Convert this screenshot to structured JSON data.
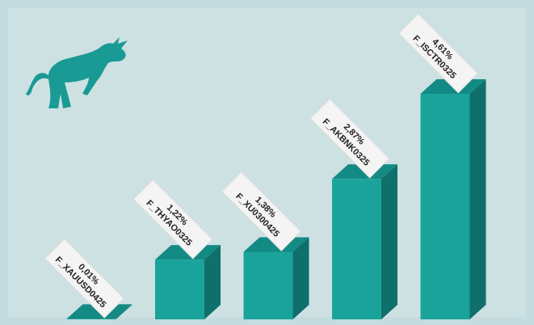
{
  "chart_data": {
    "type": "bar3d",
    "categories": [
      "F_XAUUSD0425",
      "F_THYAO0325",
      "F_XU0300425",
      "F_AKBNK0325",
      "F_ISCTR0325"
    ],
    "values": [
      0.01,
      1.22,
      1.38,
      2.87,
      4.61
    ],
    "value_labels": [
      "0,01%",
      "1,22%",
      "1,38%",
      "2,87%",
      "4,61%"
    ],
    "color": "#1aa39b"
  }
}
